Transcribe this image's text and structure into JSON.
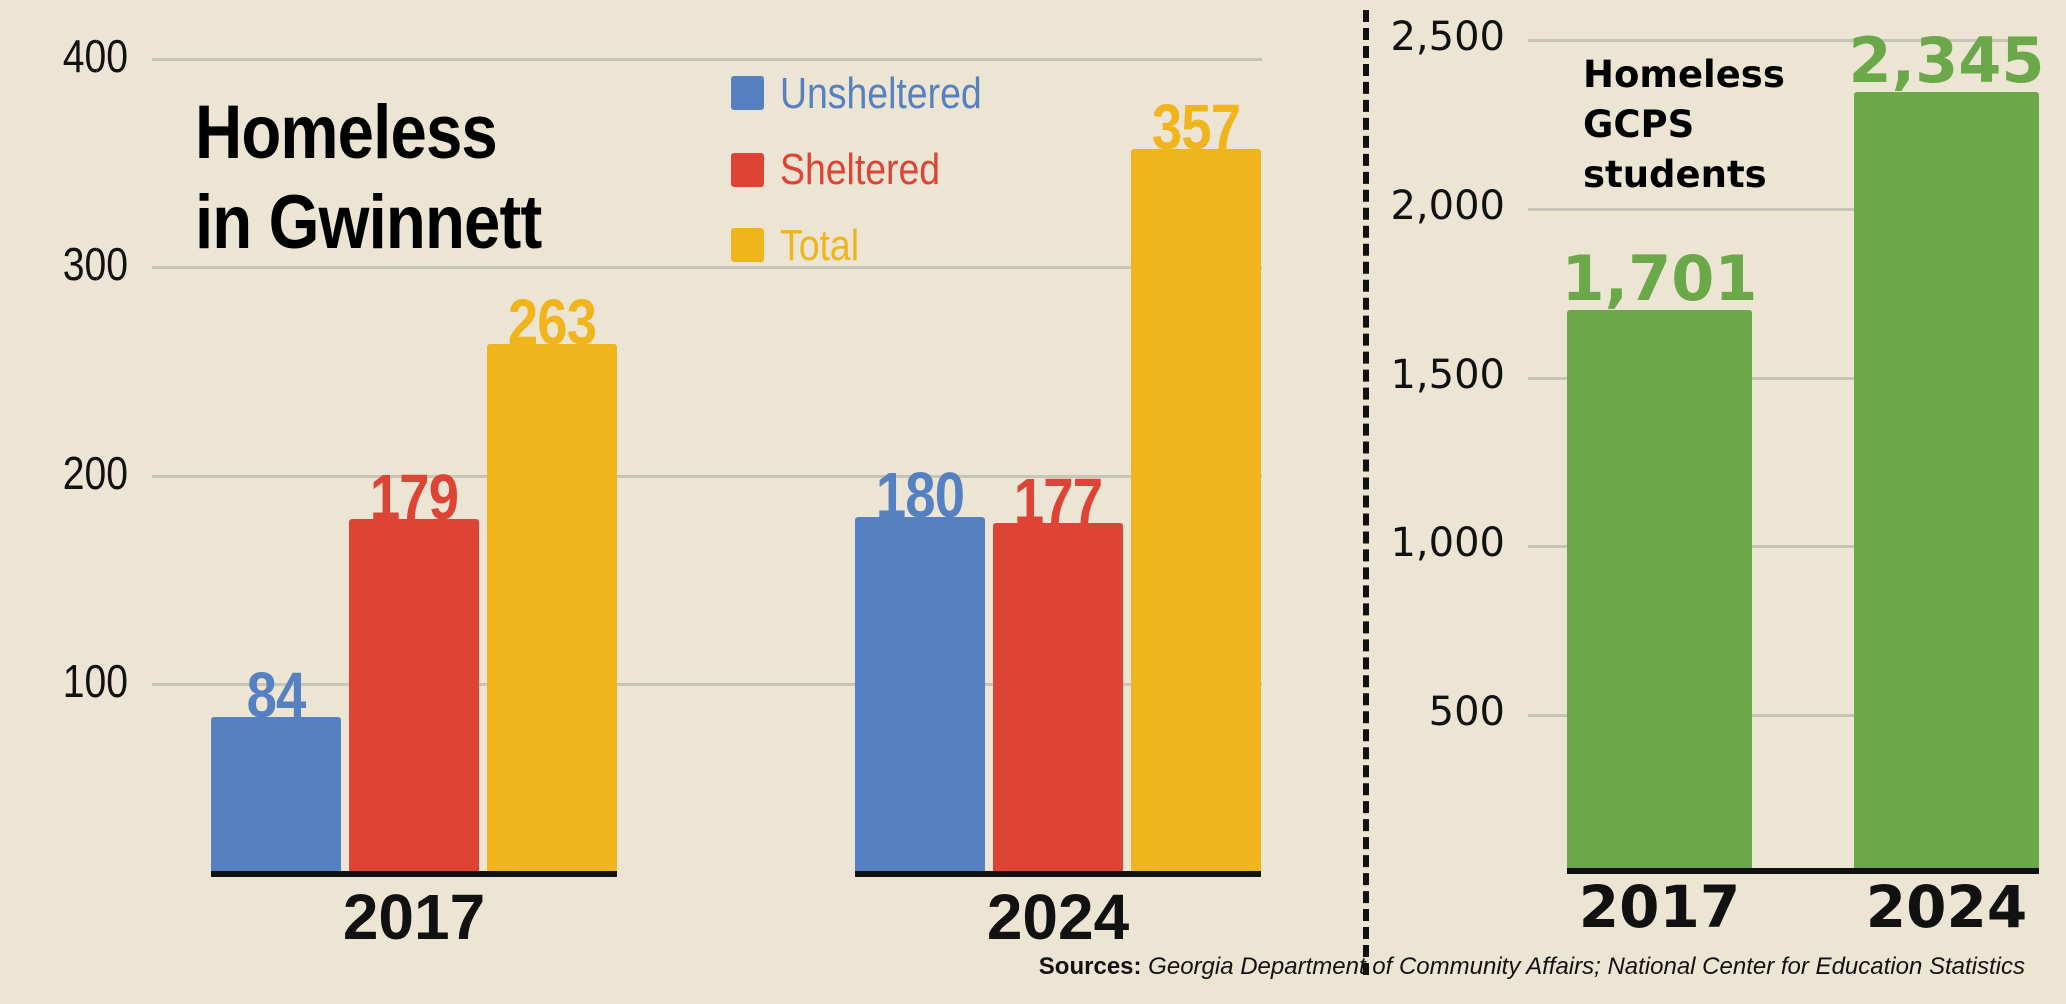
{
  "colors": {
    "background": "#ede5d3",
    "Unsheltered": "#5580c1",
    "Sheltered": "#dd4436",
    "Total": "#f0b41c",
    "students": "#6aa84a",
    "grid": "#c9c4b8"
  },
  "chart_data": [
    {
      "type": "bar",
      "title": "Homeless in Gwinnett",
      "title_lines": [
        "Homeless",
        "in Gwinnett"
      ],
      "categories": [
        "2017",
        "2024"
      ],
      "series": [
        {
          "name": "Unsheltered",
          "values": [
            84,
            180
          ]
        },
        {
          "name": "Sheltered",
          "values": [
            179,
            177
          ]
        },
        {
          "name": "Total",
          "values": [
            263,
            357
          ]
        }
      ],
      "yticks": [
        "100",
        "200",
        "300",
        "400"
      ],
      "ylim": [
        0,
        400
      ],
      "grid": true,
      "legend": "top-center"
    },
    {
      "type": "bar",
      "title": "Homeless GCPS students",
      "title_lines": [
        "Homeless",
        "GCPS",
        "students"
      ],
      "categories": [
        "2017",
        "2024"
      ],
      "values": [
        1701,
        2345
      ],
      "value_labels": [
        "1,701",
        "2,345"
      ],
      "yticks": [
        "500",
        "1,000",
        "1,500",
        "2,000",
        "2,500"
      ],
      "ylim": [
        0,
        2500
      ],
      "grid": true
    }
  ],
  "source": {
    "label": "Sources:",
    "text": "Georgia Department of Community Affairs; National Center for Education Statistics"
  }
}
